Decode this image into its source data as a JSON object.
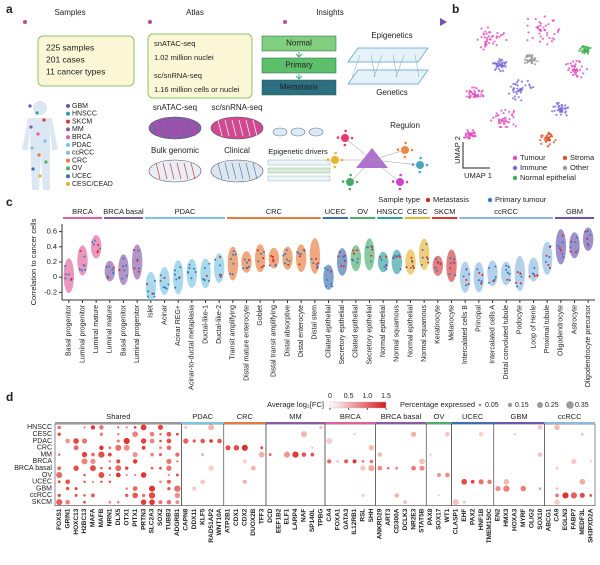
{
  "panel_a": {
    "label": "a",
    "stages": [
      "Samples",
      "Atlas",
      "Insights"
    ],
    "samples_box": [
      "225 samples",
      "201 cases",
      "11 cancer types"
    ],
    "atlas_box": [
      "snATAC-seq",
      "1.02 million nuclei",
      "sc/snRNA-seq",
      "1.16 million cells or nuclei"
    ],
    "flow": [
      "Normal",
      "Primary",
      "Metastasis"
    ],
    "insights": [
      "Epigenetics",
      "Genetics",
      "Epigenetic drivers",
      "Regulon"
    ],
    "assays": [
      "snATAC-seq",
      "sc/snRNA-seq",
      "Bulk genomic",
      "Clinical"
    ],
    "cancer_types": [
      {
        "name": "GBM",
        "color": "#6a55b0"
      },
      {
        "name": "HNSCC",
        "color": "#30a0a0"
      },
      {
        "name": "SKCM",
        "color": "#d33b3b"
      },
      {
        "name": "MM",
        "color": "#8c5aa8"
      },
      {
        "name": "BRCA",
        "color": "#e0609a"
      },
      {
        "name": "PDAC",
        "color": "#7ac6e0"
      },
      {
        "name": "ccRCC",
        "color": "#8ab8e0"
      },
      {
        "name": "CRC",
        "color": "#e87a3a"
      },
      {
        "name": "OV",
        "color": "#4bae6a"
      },
      {
        "name": "UCEC",
        "color": "#3b6fb0"
      },
      {
        "name": "CESC/CEAD",
        "color": "#e6b630"
      }
    ]
  },
  "panel_b": {
    "label": "b",
    "x_label": "UMAP 1",
    "y_label": "UMAP 2",
    "legend": [
      {
        "name": "Tumour",
        "color": "#e04fc0"
      },
      {
        "name": "Stroma",
        "color": "#e0502a"
      },
      {
        "name": "Immune",
        "color": "#7a6ad8"
      },
      {
        "name": "Other",
        "color": "#9a9a9a"
      },
      {
        "name": "Normal epithelial",
        "color": "#3fb050"
      }
    ]
  },
  "chart_data": {
    "type": "violin",
    "label": "c",
    "y_label": "Correlation to cancer cells",
    "ylim": [
      -0.3,
      0.7
    ],
    "yticks": [
      -0.2,
      0,
      0.2,
      0.4,
      0.6
    ],
    "legend_title": "Sample type",
    "legend": [
      {
        "name": "Metastasis",
        "color": "#d62728"
      },
      {
        "name": "Primary tumour",
        "color": "#3a78c2"
      }
    ],
    "series": [
      {
        "name": "BRCA",
        "color": "#e0609a",
        "categories": [
          "Basal progenitor",
          "Luminal progenitor",
          "Luminal mature"
        ],
        "values": [
          0.02,
          0.22,
          0.4
        ]
      },
      {
        "name": "BRCA basal",
        "color": "#8c5aa8",
        "categories": [
          "Luminal mature",
          "Basal progenitor",
          "Luminal progenitor"
        ],
        "values": [
          0.08,
          0.1,
          0.2
        ]
      },
      {
        "name": "PDAC",
        "color": "#7ac6e0",
        "categories": [
          "Islet",
          "Acinar",
          "Acinar REG+",
          "Acinar-to-ductal metaplasia",
          "Ductal-like-1",
          "Ductal-like-2"
        ],
        "values": [
          -0.12,
          -0.05,
          0.0,
          0.05,
          0.05,
          0.12
        ]
      },
      {
        "name": "CRC",
        "color": "#e87a3a",
        "categories": [
          "Transit amplifying",
          "Distal mature enterocyte",
          "Goblet",
          "Distal transit amplifying",
          "Distal absorptive",
          "Distal enterocyte",
          "Distal stem"
        ],
        "values": [
          0.18,
          0.2,
          0.25,
          0.25,
          0.25,
          0.25,
          0.28
        ]
      },
      {
        "name": "UCEC",
        "color": "#3b6fb0",
        "categories": [
          "Ciliated epithelial",
          "Secretory epithelial"
        ],
        "values": [
          0.0,
          0.2
        ]
      },
      {
        "name": "OV",
        "color": "#4bae6a",
        "categories": [
          "Ciliated epithelial",
          "Secretory epithelial"
        ],
        "values": [
          0.25,
          0.3
        ]
      },
      {
        "name": "HNSCC",
        "color": "#30a0a0",
        "categories": [
          "Normal epithelial",
          "Normal squamous"
        ],
        "values": [
          0.2,
          0.2
        ]
      },
      {
        "name": "CESC",
        "color": "#e6b630",
        "categories": [
          "Normal epithelial",
          "Normal squamous"
        ],
        "values": [
          0.2,
          0.3
        ]
      },
      {
        "name": "SKCM",
        "color": "#d33b3b",
        "categories": [
          "Keratinocyte",
          "Melanocyte"
        ],
        "values": [
          0.15,
          0.15
        ]
      },
      {
        "name": "ccRCC",
        "color": "#8ab8e0",
        "categories": [
          "Intercalated cells B",
          "Principal",
          "Intercalated cells A",
          "Distal convoluted tubule",
          "Podocyte",
          "Loop of Henle",
          "Proximal tubule"
        ],
        "values": [
          0.0,
          0.0,
          0.05,
          0.05,
          0.05,
          0.1,
          0.25
        ]
      },
      {
        "name": "GBM",
        "color": "#6a55b0",
        "categories": [
          "Oligodendrocyte",
          "Astrocyte",
          "Oligodendrocyte precursor"
        ],
        "values": [
          0.4,
          0.42,
          0.5
        ]
      }
    ]
  },
  "panel_d": {
    "label": "d",
    "fc_title": "Average log₂[FC]",
    "fc_ticks": [
      0,
      0.5,
      {
        "value": 1,
        "label": "1.0"
      },
      1.5
    ],
    "fc_range": [
      0,
      1.5
    ],
    "pct_title": "Percentage expressed",
    "pct_ticks": [
      0.05,
      0.15,
      0.25,
      0.35
    ],
    "rows": [
      "HNSCC",
      "CESC",
      "PDAC",
      "CRC",
      "MM",
      "BRCA",
      "BRCA basal",
      "OV",
      "UCEC",
      "GBM",
      "ccRCC",
      "SKCM"
    ],
    "groups": [
      {
        "name": "Shared",
        "color": "#999999",
        "genes": [
          "FOXS1",
          "GRIN1",
          "HOXC13",
          "H2BC13",
          "MAFA",
          "MAFB",
          "NRN1",
          "DLX5",
          "OTX1",
          "PITX1",
          "PRTN3",
          "SLC2A3",
          "SOX2",
          "TUBB3",
          "ADGRB1"
        ]
      },
      {
        "name": "PDAC",
        "color": "#7ac6e0",
        "genes": [
          "CAPN8",
          "DDX11",
          "KLF5",
          "RAD51AP2",
          "WNT10A"
        ]
      },
      {
        "name": "CRC",
        "color": "#e87a3a",
        "genes": [
          "ATP2B1",
          "CDX1",
          "CDX2",
          "DUOX2B",
          "TFF3"
        ]
      },
      {
        "name": "MM",
        "color": "#8c5aa8",
        "genes": [
          "DCD",
          "EEF1B2",
          "ELF1",
          "LARP4",
          "NAF",
          "SP140L",
          "TPBG"
        ]
      },
      {
        "name": "BRCA",
        "color": "#e0609a",
        "genes": [
          "CA4",
          "FOXA1",
          "GATA3",
          "IL12RB1",
          "RSL",
          "SHH"
        ]
      },
      {
        "name": "BRCA basal",
        "color": "#8c5aa8",
        "genes": [
          "ANKRD29",
          "ART3",
          "CD300A",
          "DCLK3",
          "NR2E3",
          "STAT5B"
        ]
      },
      {
        "name": "OV",
        "color": "#4bae6a",
        "genes": [
          "PAX8",
          "SOX17",
          "WT1"
        ]
      },
      {
        "name": "UCEC",
        "color": "#3b6fb0",
        "genes": [
          "CLASP1",
          "EHF",
          "PAX2",
          "HNF1B",
          "TMEM150C"
        ]
      },
      {
        "name": "GBM",
        "color": "#6a55b0",
        "genes": [
          "EN2",
          "HMX3",
          "HOXA3",
          "MYRF",
          "OLIG2",
          "SOX10"
        ]
      },
      {
        "name": "ccRCC",
        "color": "#8ab8e0",
        "genes": [
          "ABCG1",
          "CA9",
          "EGLN3",
          "FABP7",
          "MEDF3L",
          "SH3PXD2A"
        ]
      }
    ]
  }
}
